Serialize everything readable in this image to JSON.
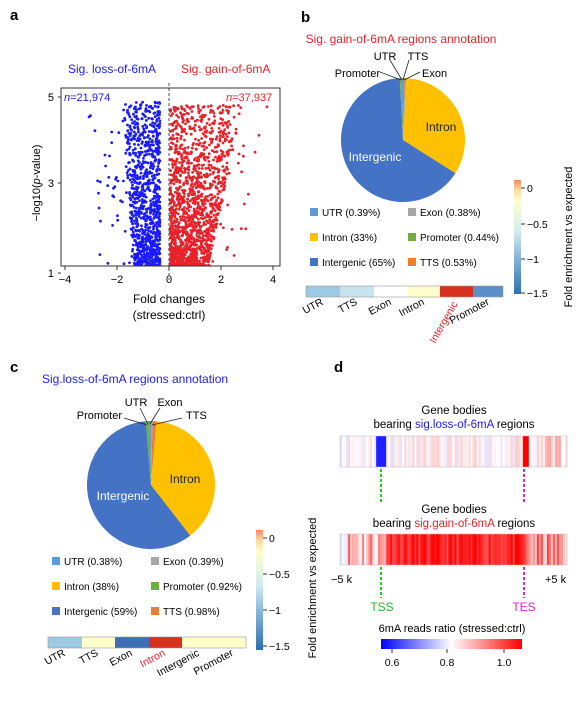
{
  "colors": {
    "loss": "#1a1aff",
    "gain": "#e8222a",
    "utr": "#5b9bd5",
    "exon": "#a6a6a6",
    "intron": "#ffc000",
    "promoter": "#70ad47",
    "intergenic": "#4472c4",
    "tts": "#ed7d31",
    "tss_line": "#22cc22",
    "tes_line": "#dd22dd"
  },
  "panel_a": {
    "label": "a",
    "loss_label": "Sig. loss-of-6mA",
    "gain_label": "Sig. gain-of-6mA",
    "loss_n_italic": "n",
    "loss_n_rest": "=21,974",
    "gain_n_italic": "n",
    "gain_n_rest": "=37,937",
    "ylabel_pre": "−log10(",
    "ylabel_italic": "p",
    "ylabel_post": "-value)",
    "xlabel_1": "Fold changes",
    "xlabel_2": "(stressed:ctrl)",
    "yticks": [
      "1",
      "3",
      "5"
    ],
    "xticks": [
      "−4",
      "−2",
      "0",
      "2",
      "4"
    ]
  },
  "panel_b": {
    "label": "b",
    "title": "Sig. gain-of-6mA regions annotation",
    "slice_labels": {
      "utr": "UTR",
      "tts": "TTS",
      "promoter": "Promoter",
      "exon": "Exon",
      "intron": "Intron",
      "intergenic": "Intergenic"
    },
    "legend": [
      {
        "key": "utr",
        "text": "UTR (0.39%)"
      },
      {
        "key": "exon",
        "text": "Exon (0.38%)"
      },
      {
        "key": "intron",
        "text": "Intron (33%)"
      },
      {
        "key": "promoter",
        "text": "Promoter (0.44%)"
      },
      {
        "key": "intergenic",
        "text": "Intergenic (65%)"
      },
      {
        "key": "tts",
        "text": "TTS (0.53%)"
      }
    ],
    "heat_labels": [
      "UTR",
      "TTS",
      "Exon",
      "Intron",
      "Intergenic",
      "Promoter"
    ],
    "heat_colors": [
      "#9ec9e2",
      "#c6e3ee",
      "#ffffff",
      "#ffffcc",
      "#d7301f",
      "#5b8fc7"
    ],
    "cbar_label": "Fold enrichment vs expected",
    "cbar_ticks": [
      "0",
      "−0.5",
      "−1",
      "−1.5"
    ]
  },
  "panel_c": {
    "label": "c",
    "title": "Sig.loss-of-6mA regions annotation",
    "slice_labels": {
      "utr": "UTR",
      "exon": "Exon",
      "tts": "TTS",
      "promoter": "Promoter",
      "intron": "Intron",
      "intergenic": "Intergenic"
    },
    "legend": [
      {
        "key": "utr",
        "text": "UTR (0.38%)"
      },
      {
        "key": "exon",
        "text": "Exon (0.39%)"
      },
      {
        "key": "intron",
        "text": "Intron (38%)"
      },
      {
        "key": "promoter",
        "text": "Promoter (0.92%)"
      },
      {
        "key": "intergenic",
        "text": "Intergenic (59%)"
      },
      {
        "key": "tts",
        "text": "TTS (0.98%)"
      }
    ],
    "heat_labels": [
      "UTR",
      "TTS",
      "Exon",
      "Intron",
      "Intergenic",
      "Promoter"
    ],
    "heat_colors": [
      "#9ec9e2",
      "#ffffcc",
      "#3f6fb5",
      "#d7301f",
      "#ffffcc",
      "#ffffcc"
    ],
    "cbar_label": "Fold enrichment vs expected",
    "cbar_ticks": [
      "0",
      "−0.5",
      "−1",
      "−1.5"
    ]
  },
  "panel_d": {
    "label": "d",
    "top_title_1": "Gene bodies",
    "top_title_2_pre": "bearing ",
    "top_title_2_colored": "sig.loss-of-6mA",
    "top_title_2_post": " regions",
    "bottom_title_1": "Gene bodies",
    "bottom_title_2_pre": "bearing ",
    "bottom_title_2_colored": "sig.gain-of-6mA",
    "bottom_title_2_post": " regions",
    "left_bound": "−5 k",
    "right_bound": "+5 k",
    "tss": "TSS",
    "tes": "TES",
    "scale_title": "6mA reads ratio (stressed:ctrl)",
    "scale_ticks": [
      "0.6",
      "0.8",
      "1.0"
    ]
  }
}
